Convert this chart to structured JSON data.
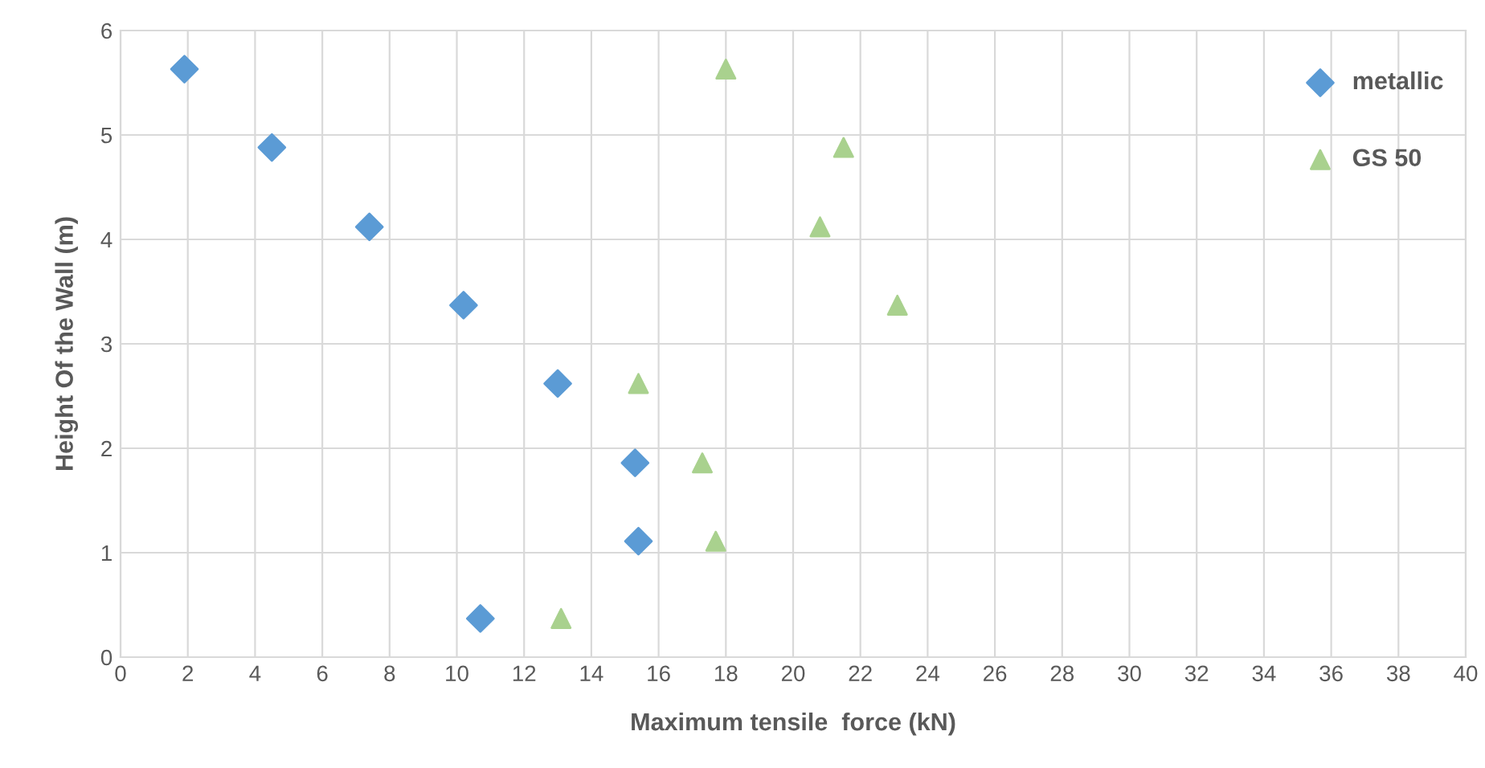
{
  "chart_data": {
    "type": "scatter",
    "xlabel": "Maximum tensile  force (kN)",
    "ylabel": "Height Of the Wall (m)",
    "xlim": [
      0,
      40
    ],
    "xticks": [
      0,
      2,
      4,
      6,
      8,
      10,
      12,
      14,
      16,
      18,
      20,
      22,
      24,
      26,
      28,
      30,
      32,
      34,
      36,
      38,
      40
    ],
    "ylim": [
      0,
      6
    ],
    "yticks": [
      0,
      1,
      2,
      3,
      4,
      5,
      6
    ],
    "grid": true,
    "legend": "top right",
    "series": [
      {
        "name": "metallic",
        "color": "#5b9bd5",
        "marker": "diamond",
        "x": [
          1.9,
          4.5,
          7.4,
          10.2,
          13.0,
          15.3,
          15.4,
          10.7
        ],
        "values": [
          5.63,
          4.88,
          4.12,
          3.37,
          2.62,
          1.86,
          1.11,
          0.37
        ]
      },
      {
        "name": "GS 50",
        "color": "#a9d18e",
        "marker": "triangle",
        "x": [
          18.0,
          21.5,
          20.8,
          23.1,
          15.4,
          17.3,
          17.7,
          13.1
        ],
        "values": [
          5.63,
          4.88,
          4.12,
          3.37,
          2.62,
          1.86,
          1.11,
          0.37
        ]
      }
    ]
  }
}
